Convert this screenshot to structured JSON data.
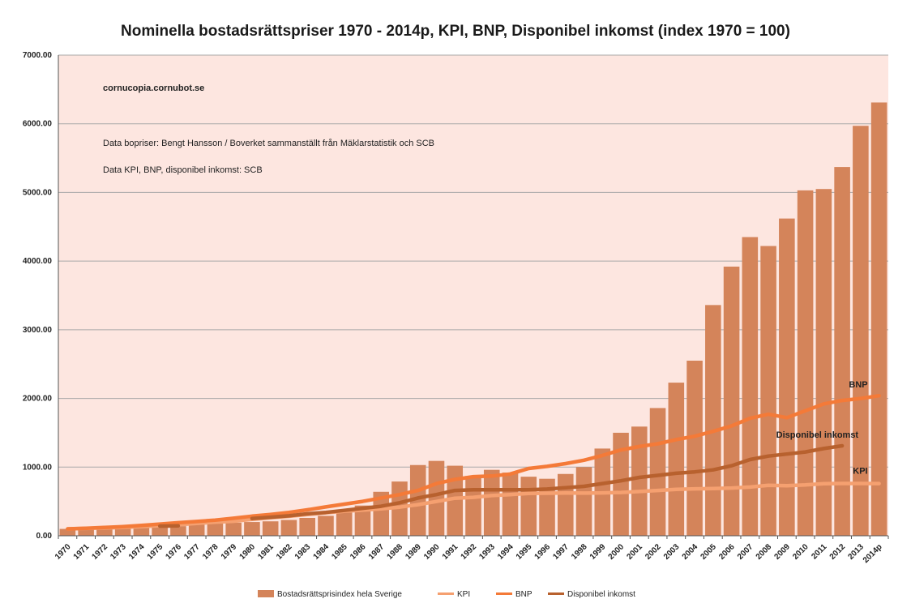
{
  "chart_data": {
    "type": "bar",
    "title": "Nominella bostadsrättspriser 1970 - 2014p, KPI, BNP, Disponibel inkomst (index 1970 = 100)",
    "xlabel": "",
    "ylabel": "",
    "ylim": [
      0,
      7000
    ],
    "yticks": [
      "0.00",
      "1000.00",
      "2000.00",
      "3000.00",
      "4000.00",
      "5000.00",
      "6000.00",
      "7000.00"
    ],
    "grid": true,
    "legend_position": "bottom",
    "categories": [
      "1970",
      "1971",
      "1972",
      "1973",
      "1974",
      "1975",
      "1976",
      "1977",
      "1978",
      "1979",
      "1980",
      "1981",
      "1982",
      "1983",
      "1984",
      "1985",
      "1986",
      "1987",
      "1988",
      "1989",
      "1990",
      "1991",
      "1992",
      "1993",
      "1994",
      "1995",
      "1996",
      "1997",
      "1998",
      "1999",
      "2000",
      "2001",
      "2002",
      "2003",
      "2004",
      "2005",
      "2006",
      "2007",
      "2008",
      "2009",
      "2010",
      "2011",
      "2012",
      "2013",
      "2014p"
    ],
    "annotations": [
      "cornucopia.cornubot.se",
      "Data bopriser: Bengt Hansson / Boverket sammanställt från Mäklarstatistik och SCB",
      "Data KPI, BNP, disponibel inkomst: SCB"
    ],
    "series": [
      {
        "name": "Bostadsrättsprisindex hela Sverige",
        "type": "bar",
        "color": "#d4845a",
        "values": [
          100,
          105,
          110,
          118,
          125,
          135,
          140,
          160,
          180,
          190,
          200,
          210,
          230,
          260,
          290,
          360,
          440,
          640,
          790,
          1030,
          1090,
          1020,
          870,
          960,
          920,
          860,
          830,
          900,
          1000,
          1270,
          1500,
          1590,
          1860,
          2230,
          2550,
          3360,
          3920,
          4350,
          4220,
          4620,
          5030,
          5050,
          5370,
          5970,
          6310
        ]
      },
      {
        "name": "KPI",
        "type": "line",
        "color": "#f5a070",
        "end_label": "KPI",
        "values": [
          100,
          107,
          113,
          121,
          133,
          146,
          161,
          179,
          197,
          211,
          240,
          262,
          283,
          309,
          335,
          358,
          373,
          392,
          417,
          453,
          499,
          547,
          560,
          586,
          600,
          617,
          620,
          623,
          621,
          624,
          630,
          645,
          660,
          676,
          684,
          687,
          695,
          710,
          735,
          730,
          740,
          759,
          761,
          761,
          760
        ]
      },
      {
        "name": "BNP",
        "type": "line",
        "color": "#f47a38",
        "end_label": "BNP",
        "values": [
          100,
          110,
          121,
          133,
          150,
          170,
          190,
          208,
          228,
          255,
          286,
          310,
          340,
          378,
          420,
          460,
          500,
          550,
          600,
          660,
          760,
          820,
          860,
          870,
          900,
          980,
          1010,
          1050,
          1100,
          1170,
          1250,
          1300,
          1340,
          1400,
          1450,
          1520,
          1600,
          1710,
          1770,
          1720,
          1820,
          1920,
          1970,
          2000,
          2040
        ]
      },
      {
        "name": "Disponibel inkomst",
        "type": "line",
        "color": "#b8612e",
        "end_label": "Disponibel inkomst",
        "segments": [
          {
            "x": [
              "1975",
              "1976"
            ],
            "values": [
              140,
              145
            ]
          },
          {
            "x": [
              "1980",
              "1981",
              "1982",
              "1983",
              "1984",
              "1985",
              "1986",
              "1987",
              "1988",
              "1989",
              "1990",
              "1991",
              "1992",
              "1993",
              "1994",
              "1995",
              "1996",
              "1997",
              "1998",
              "1999",
              "2000",
              "2001",
              "2002",
              "2003",
              "2004",
              "2005",
              "2006",
              "2007",
              "2008",
              "2009",
              "2010",
              "2011",
              "2012"
            ],
            "values": [
              250,
              270,
              290,
              320,
              340,
              370,
              400,
              430,
              480,
              550,
              600,
              660,
              670,
              670,
              670,
              670,
              680,
              700,
              720,
              760,
              800,
              850,
              880,
              910,
              930,
              960,
              1020,
              1110,
              1160,
              1190,
              1220,
              1270,
              1310
            ]
          }
        ]
      }
    ]
  }
}
